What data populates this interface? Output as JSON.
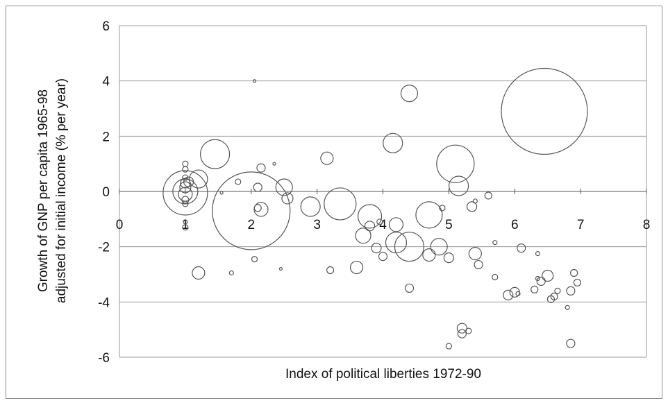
{
  "chart_data": {
    "type": "scatter",
    "variant": "bubble",
    "title": "",
    "xlabel": "Index of political liberties 1972-90",
    "ylabel_lines": [
      "Growth of GNP per capita 1965-98",
      "adjusted for initial income (% per year)"
    ],
    "xlim": [
      0,
      8
    ],
    "ylim": [
      -6,
      6
    ],
    "xticks": [
      0,
      1,
      2,
      3,
      4,
      5,
      6,
      7,
      8
    ],
    "yticks": [
      -6,
      -4,
      -2,
      0,
      2,
      4,
      6
    ],
    "grid": "horizontal",
    "legend": "none",
    "marker_style": "hollow circles, area proportional to size",
    "color": "#555555",
    "points": [
      {
        "x": 1.0,
        "y": -0.05,
        "size": 32
      },
      {
        "x": 1.0,
        "y": 0.0,
        "size": 18
      },
      {
        "x": 1.0,
        "y": -0.1,
        "size": 10
      },
      {
        "x": 1.0,
        "y": 0.15,
        "size": 8
      },
      {
        "x": 1.0,
        "y": 0.3,
        "size": 7
      },
      {
        "x": 1.0,
        "y": 0.5,
        "size": 4
      },
      {
        "x": 1.0,
        "y": 0.8,
        "size": 4
      },
      {
        "x": 1.0,
        "y": 1.0,
        "size": 4
      },
      {
        "x": 1.0,
        "y": -0.3,
        "size": 5
      },
      {
        "x": 1.0,
        "y": -0.45,
        "size": 4
      },
      {
        "x": 1.0,
        "y": -1.3,
        "size": 4
      },
      {
        "x": 1.0,
        "y": -1.1,
        "size": 3
      },
      {
        "x": 1.05,
        "y": 0.35,
        "size": 7
      },
      {
        "x": 1.2,
        "y": 0.45,
        "size": 13
      },
      {
        "x": 1.45,
        "y": 1.35,
        "size": 21
      },
      {
        "x": 1.55,
        "y": -0.05,
        "size": 2
      },
      {
        "x": 1.8,
        "y": 0.35,
        "size": 4
      },
      {
        "x": 1.7,
        "y": -2.95,
        "size": 3
      },
      {
        "x": 1.2,
        "y": -2.95,
        "size": 9
      },
      {
        "x": 2.0,
        "y": -0.7,
        "size": 56
      },
      {
        "x": 2.05,
        "y": 4.0,
        "size": 2
      },
      {
        "x": 2.05,
        "y": -2.45,
        "size": 4
      },
      {
        "x": 2.1,
        "y": 0.15,
        "size": 6
      },
      {
        "x": 2.15,
        "y": 0.85,
        "size": 6
      },
      {
        "x": 2.15,
        "y": -0.65,
        "size": 10
      },
      {
        "x": 2.1,
        "y": -0.6,
        "size": 5
      },
      {
        "x": 2.35,
        "y": 1.0,
        "size": 2
      },
      {
        "x": 2.45,
        "y": -2.8,
        "size": 2
      },
      {
        "x": 2.5,
        "y": 0.15,
        "size": 12
      },
      {
        "x": 2.55,
        "y": -0.25,
        "size": 8
      },
      {
        "x": 2.9,
        "y": -0.55,
        "size": 14
      },
      {
        "x": 3.15,
        "y": 1.2,
        "size": 9
      },
      {
        "x": 3.2,
        "y": -2.85,
        "size": 5
      },
      {
        "x": 3.35,
        "y": -0.45,
        "size": 23
      },
      {
        "x": 3.6,
        "y": -2.75,
        "size": 9
      },
      {
        "x": 3.7,
        "y": -1.6,
        "size": 11
      },
      {
        "x": 3.8,
        "y": -0.9,
        "size": 17
      },
      {
        "x": 3.8,
        "y": -1.25,
        "size": 7
      },
      {
        "x": 3.9,
        "y": -2.05,
        "size": 7
      },
      {
        "x": 3.95,
        "y": -1.1,
        "size": 4
      },
      {
        "x": 4.0,
        "y": -2.35,
        "size": 6
      },
      {
        "x": 4.15,
        "y": 1.75,
        "size": 14
      },
      {
        "x": 4.2,
        "y": -1.2,
        "size": 10
      },
      {
        "x": 4.2,
        "y": -1.85,
        "size": 15
      },
      {
        "x": 4.4,
        "y": 3.55,
        "size": 12
      },
      {
        "x": 4.4,
        "y": -2.0,
        "size": 21
      },
      {
        "x": 4.4,
        "y": -3.5,
        "size": 6
      },
      {
        "x": 4.7,
        "y": -0.85,
        "size": 19
      },
      {
        "x": 4.7,
        "y": -2.3,
        "size": 9
      },
      {
        "x": 4.85,
        "y": -2.0,
        "size": 12
      },
      {
        "x": 4.9,
        "y": -0.6,
        "size": 4
      },
      {
        "x": 5.0,
        "y": -2.4,
        "size": 7
      },
      {
        "x": 5.0,
        "y": -5.6,
        "size": 4
      },
      {
        "x": 5.1,
        "y": 1.0,
        "size": 27
      },
      {
        "x": 5.15,
        "y": 0.2,
        "size": 14
      },
      {
        "x": 5.2,
        "y": -4.95,
        "size": 7
      },
      {
        "x": 5.2,
        "y": -5.15,
        "size": 6
      },
      {
        "x": 5.3,
        "y": -5.05,
        "size": 4
      },
      {
        "x": 5.35,
        "y": -0.55,
        "size": 7
      },
      {
        "x": 5.4,
        "y": -0.35,
        "size": 3
      },
      {
        "x": 5.4,
        "y": -2.25,
        "size": 9
      },
      {
        "x": 5.45,
        "y": -2.65,
        "size": 6
      },
      {
        "x": 5.6,
        "y": -0.15,
        "size": 5
      },
      {
        "x": 5.7,
        "y": -1.85,
        "size": 3
      },
      {
        "x": 5.7,
        "y": -3.1,
        "size": 4
      },
      {
        "x": 5.9,
        "y": -3.75,
        "size": 7
      },
      {
        "x": 6.0,
        "y": -3.65,
        "size": 7
      },
      {
        "x": 6.05,
        "y": -3.7,
        "size": 3
      },
      {
        "x": 6.1,
        "y": -2.05,
        "size": 6
      },
      {
        "x": 6.3,
        "y": -3.55,
        "size": 5
      },
      {
        "x": 6.35,
        "y": -2.25,
        "size": 3
      },
      {
        "x": 6.35,
        "y": -3.15,
        "size": 3
      },
      {
        "x": 6.4,
        "y": -3.25,
        "size": 6
      },
      {
        "x": 6.45,
        "y": 2.9,
        "size": 62
      },
      {
        "x": 6.5,
        "y": -3.05,
        "size": 8
      },
      {
        "x": 6.55,
        "y": -3.9,
        "size": 5
      },
      {
        "x": 6.6,
        "y": -3.8,
        "size": 5
      },
      {
        "x": 6.65,
        "y": -3.6,
        "size": 4
      },
      {
        "x": 6.8,
        "y": -4.2,
        "size": 3
      },
      {
        "x": 6.85,
        "y": -3.6,
        "size": 6
      },
      {
        "x": 6.85,
        "y": -5.5,
        "size": 6
      },
      {
        "x": 6.9,
        "y": -2.95,
        "size": 5
      },
      {
        "x": 6.95,
        "y": -3.3,
        "size": 5
      }
    ]
  }
}
